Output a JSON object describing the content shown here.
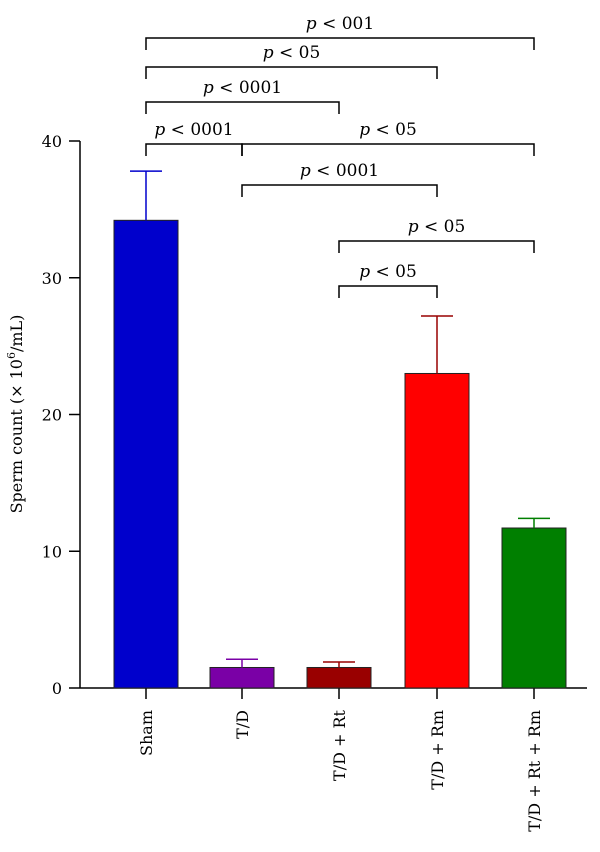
{
  "chart_data": {
    "type": "bar",
    "ylabel": "Sperm count (× 10",
    "ylabel_sup": "6",
    "ylabel_suffix": "/mL)",
    "ylim": [
      0,
      40
    ],
    "yticks": [
      0,
      10,
      20,
      30,
      40
    ],
    "categories": [
      "Sham",
      "T/D",
      "T/D + Rt",
      "T/D + Rm",
      "T/D + Rt + Rm"
    ],
    "values": [
      34.2,
      1.5,
      1.5,
      23.0,
      11.7
    ],
    "errors": [
      3.6,
      0.6,
      0.4,
      4.2,
      0.7
    ],
    "colors": [
      "#0000cc",
      "#7a00a6",
      "#990000",
      "#ff0000",
      "#007f00"
    ],
    "error_colors": [
      "#0000cc",
      "#7a00a6",
      "#990000",
      "#990000",
      "#007f00"
    ],
    "significance": [
      {
        "from": "Sham",
        "to": "T/D + Rt + Rm",
        "prefix": "p",
        "text": " < 001"
      },
      {
        "from": "Sham",
        "to": "T/D + Rm",
        "prefix": "p",
        "text": " < 05"
      },
      {
        "from": "Sham",
        "to": "T/D + Rt",
        "prefix": "p",
        "text": " < 0001"
      },
      {
        "from": "Sham",
        "to": "T/D",
        "prefix": "p",
        "text": " < 0001"
      },
      {
        "from": "T/D",
        "to": "T/D + Rt + Rm",
        "prefix": "p",
        "text": " < 05"
      },
      {
        "from": "T/D",
        "to": "T/D + Rm",
        "prefix": "p",
        "text": " < 0001"
      },
      {
        "from": "T/D + Rt",
        "to": "T/D + Rt + Rm",
        "prefix": "p",
        "text": " < 05"
      },
      {
        "from": "T/D + Rt",
        "to": "T/D + Rm",
        "prefix": "p",
        "text": " < 05"
      }
    ]
  }
}
